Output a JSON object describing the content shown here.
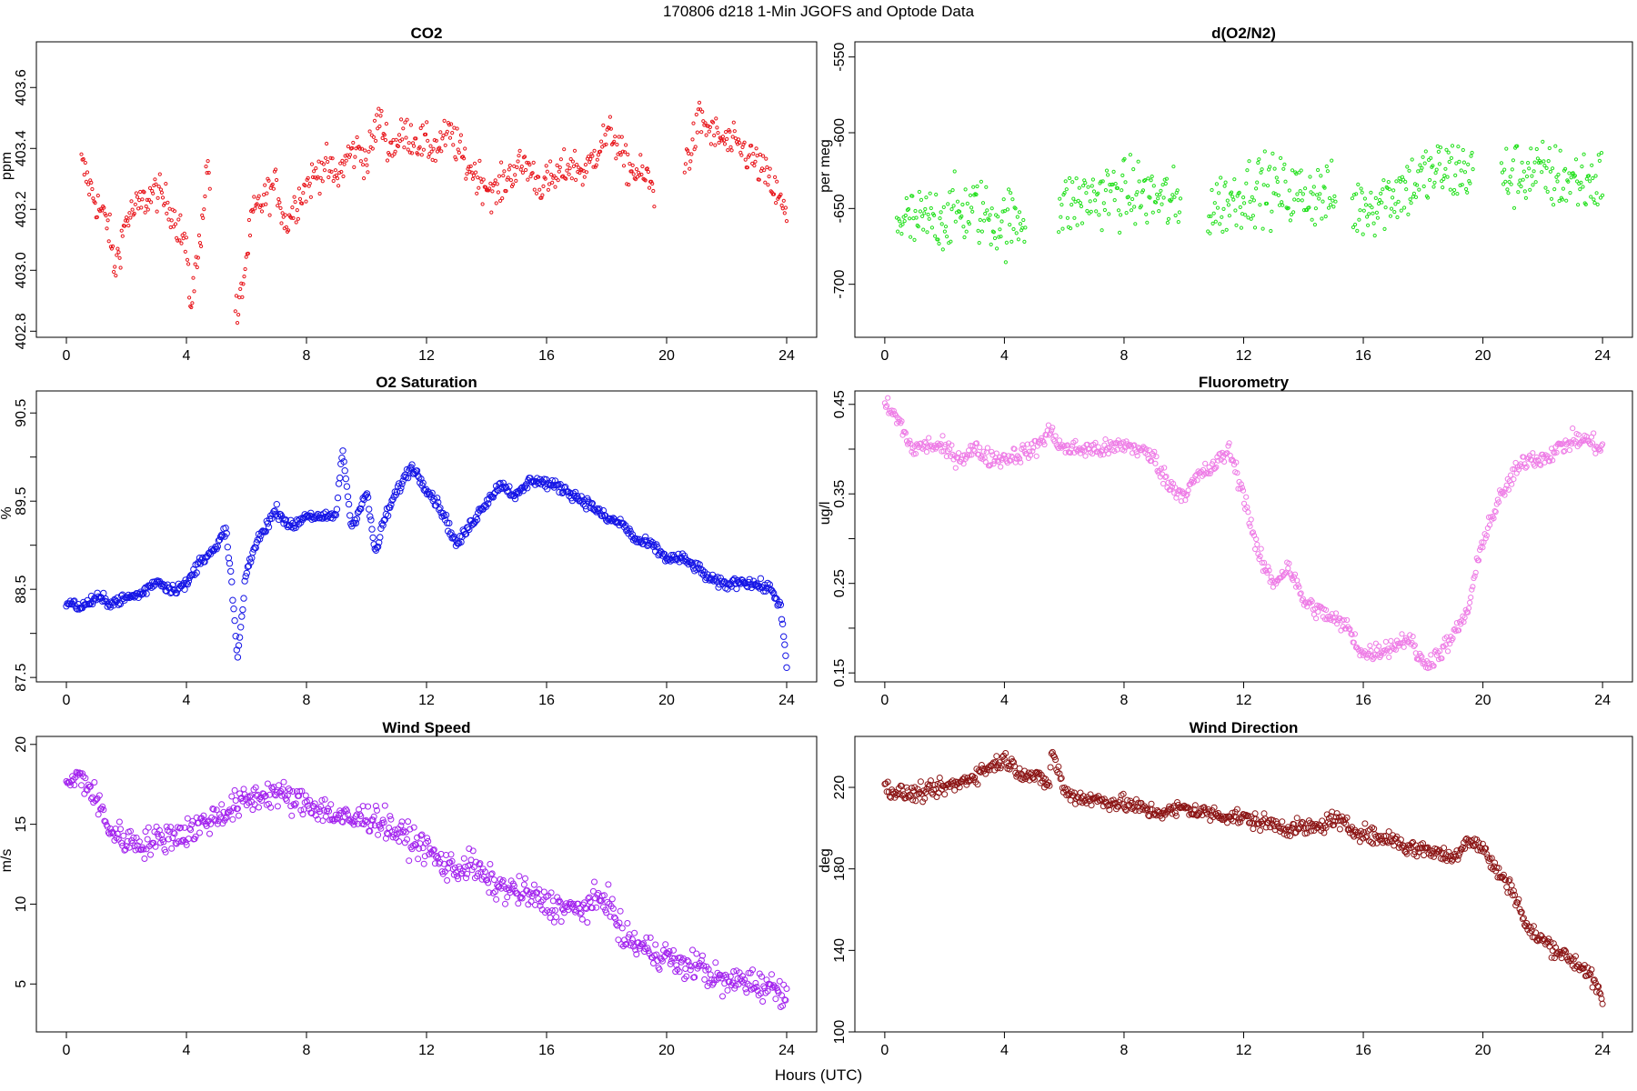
{
  "figure": {
    "title": "170806   d218   1-Min  JGOFS and Optode Data",
    "xlabel": "Hours (UTC)"
  },
  "chart_data": [
    {
      "type": "scatter",
      "title": "CO2",
      "ylabel": "ppm",
      "xlim": [
        -1,
        25
      ],
      "ylim": [
        402.78,
        403.75
      ],
      "xticks": [
        0,
        4,
        8,
        12,
        16,
        20,
        24
      ],
      "yticks": [
        402.8,
        403.0,
        403.2,
        403.4,
        403.6
      ],
      "ytick_labels": [
        "402.8",
        "403.0",
        "403.2",
        "403.4",
        "403.6"
      ],
      "marker_size": 1.6,
      "color": "#e8151b",
      "series": [
        {
          "x": [
            0.5,
            1,
            1.4,
            1.6,
            2,
            2.5,
            3,
            3.5,
            4,
            4.1,
            4.4,
            4.7,
            5.7,
            5.9,
            6.2,
            6.7,
            7,
            7.3,
            7.8,
            8.2,
            8.6,
            9,
            9.4,
            9.8,
            10,
            10.4,
            10.8,
            11.3,
            11.8,
            12.3,
            12.8,
            13.3,
            13.8,
            14.3,
            14.8,
            15.3,
            15.8,
            16.3,
            16.8,
            17.3,
            17.8,
            18.2,
            18.6,
            19,
            19.4,
            19.6,
            20.6,
            20.9,
            21.1,
            21.5,
            22,
            22.5,
            23,
            23.5,
            23.9,
            24
          ],
          "y": [
            403.35,
            403.22,
            403.15,
            403.0,
            403.17,
            403.22,
            403.26,
            403.2,
            403.08,
            402.88,
            403.05,
            403.35,
            402.84,
            402.97,
            403.18,
            403.25,
            403.28,
            403.15,
            403.25,
            403.3,
            403.35,
            403.3,
            403.38,
            403.4,
            403.35,
            403.5,
            403.4,
            403.45,
            403.42,
            403.4,
            403.45,
            403.35,
            403.3,
            403.25,
            403.32,
            403.35,
            403.28,
            403.3,
            403.35,
            403.32,
            403.42,
            403.45,
            403.35,
            403.32,
            403.3,
            403.25,
            403.35,
            403.42,
            403.5,
            403.45,
            403.42,
            403.4,
            403.35,
            403.28,
            403.2,
            403.16
          ],
          "spread": 0.06
        }
      ]
    },
    {
      "type": "scatter",
      "title": "d(O2/N2)",
      "ylabel": "per meg",
      "xlim": [
        -1,
        25
      ],
      "ylim": [
        -735,
        -540
      ],
      "xticks": [
        0,
        4,
        8,
        12,
        16,
        20,
        24
      ],
      "yticks": [
        -700,
        -650,
        -600,
        -550
      ],
      "ytick_labels": [
        "-700",
        "-650",
        "-600",
        "-550"
      ],
      "marker_size": 1.6,
      "color": "#22e01c",
      "series": [
        {
          "x": [
            0.4,
            1,
            2,
            3,
            4,
            4.7,
            5.8,
            6.5,
            7.5,
            8.5,
            9.5,
            9.9,
            10.8,
            11.5,
            12.5,
            13.5,
            14.5,
            15.2,
            15.6,
            16.5,
            17.5,
            18.5,
            19.2,
            19.8,
            20.6,
            21.5,
            22.5,
            23.5,
            24
          ],
          "y": [
            -655,
            -660,
            -655,
            -650,
            -660,
            -655,
            -650,
            -645,
            -640,
            -640,
            -645,
            -650,
            -650,
            -645,
            -635,
            -640,
            -640,
            -645,
            -650,
            -645,
            -635,
            -625,
            -625,
            -625,
            -630,
            -625,
            -630,
            -632,
            -632
          ],
          "spread": 22
        }
      ]
    },
    {
      "type": "scatter",
      "title": "O2 Saturation",
      "ylabel": "%",
      "xlim": [
        -1,
        25
      ],
      "ylim": [
        87.45,
        90.75
      ],
      "xticks": [
        0,
        4,
        8,
        12,
        16,
        20,
        24
      ],
      "yticks": [
        87.5,
        88.0,
        88.5,
        89.0,
        89.5,
        90.0,
        90.5
      ],
      "ytick_labels": [
        "87.5",
        "",
        "88.5",
        "",
        "89.5",
        "",
        "90.5"
      ],
      "marker_size": 3.2,
      "color": "#1515e6",
      "series": [
        {
          "x": [
            0,
            0.5,
            1,
            1.5,
            2,
            2.5,
            3,
            3.5,
            4,
            4.5,
            5,
            5.3,
            5.5,
            5.7,
            6,
            6.3,
            6.7,
            7,
            7.5,
            8,
            8.5,
            9,
            9.2,
            9.5,
            10,
            10.3,
            10.6,
            11,
            11.5,
            12,
            12.5,
            13,
            13.5,
            14,
            14.5,
            15,
            15.5,
            16,
            16.5,
            17,
            17.5,
            18,
            18.5,
            19,
            19.5,
            20,
            20.5,
            21,
            21.5,
            22,
            22.5,
            23,
            23.5,
            23.8,
            24
          ],
          "y": [
            88.35,
            88.3,
            88.4,
            88.35,
            88.4,
            88.45,
            88.6,
            88.5,
            88.55,
            88.85,
            88.95,
            89.2,
            88.6,
            87.7,
            88.7,
            89.0,
            89.25,
            89.4,
            89.2,
            89.35,
            89.3,
            89.35,
            90.1,
            89.2,
            89.6,
            88.9,
            89.3,
            89.6,
            89.9,
            89.65,
            89.4,
            89.0,
            89.25,
            89.5,
            89.7,
            89.55,
            89.75,
            89.7,
            89.65,
            89.55,
            89.45,
            89.3,
            89.25,
            89.05,
            89.0,
            88.85,
            88.85,
            88.75,
            88.6,
            88.55,
            88.6,
            88.55,
            88.5,
            88.3,
            87.6
          ],
          "spread": 0.06
        }
      ]
    },
    {
      "type": "scatter",
      "title": "Fluorometry",
      "ylabel": "ug/l",
      "xlim": [
        -1,
        25
      ],
      "ylim": [
        0.14,
        0.465
      ],
      "xticks": [
        0,
        4,
        8,
        12,
        16,
        20,
        24
      ],
      "yticks": [
        0.15,
        0.2,
        0.25,
        0.3,
        0.35,
        0.4,
        0.45
      ],
      "ytick_labels": [
        "0.15",
        "",
        "0.25",
        "",
        "0.35",
        "",
        "0.45"
      ],
      "marker_size": 2.6,
      "color": "#ee7ce6",
      "series": [
        {
          "x": [
            0,
            0.5,
            0.9,
            1.5,
            2,
            2.5,
            3,
            3.5,
            4,
            4.5,
            5,
            5.5,
            6,
            6.5,
            7,
            7.5,
            8,
            8.5,
            9,
            9.5,
            10,
            10.5,
            11,
            11.5,
            12,
            12.5,
            13,
            13.5,
            14,
            14.5,
            15,
            15.5,
            16,
            16.5,
            17,
            17.5,
            18,
            18.5,
            19,
            19.5,
            20,
            20.5,
            21,
            21.5,
            22,
            22.5,
            23,
            23.5,
            24
          ],
          "y": [
            0.45,
            0.43,
            0.4,
            0.405,
            0.4,
            0.39,
            0.4,
            0.39,
            0.39,
            0.395,
            0.4,
            0.42,
            0.4,
            0.4,
            0.4,
            0.4,
            0.405,
            0.4,
            0.39,
            0.36,
            0.35,
            0.37,
            0.38,
            0.4,
            0.35,
            0.28,
            0.25,
            0.27,
            0.23,
            0.22,
            0.21,
            0.2,
            0.17,
            0.175,
            0.18,
            0.19,
            0.16,
            0.17,
            0.19,
            0.22,
            0.3,
            0.34,
            0.37,
            0.39,
            0.39,
            0.4,
            0.41,
            0.41,
            0.4
          ],
          "spread": 0.01
        }
      ]
    },
    {
      "type": "scatter",
      "title": "Wind Speed",
      "ylabel": "m/s",
      "xlim": [
        -1,
        25
      ],
      "ylim": [
        2,
        20.5
      ],
      "xticks": [
        0,
        4,
        8,
        12,
        16,
        20,
        24
      ],
      "yticks": [
        5,
        10,
        15,
        20
      ],
      "ytick_labels": [
        "5",
        "10",
        "15",
        "20"
      ],
      "marker_size": 3.0,
      "color": "#a222ee",
      "series": [
        {
          "x": [
            0,
            0.5,
            1,
            1.5,
            2,
            2.5,
            3,
            3.5,
            4,
            4.5,
            5,
            5.5,
            6,
            6.5,
            7,
            7.5,
            8,
            8.5,
            9,
            9.5,
            10,
            10.5,
            11,
            11.5,
            12,
            12.5,
            13,
            13.5,
            14,
            14.5,
            15,
            15.5,
            16,
            16.5,
            17,
            17.5,
            18,
            18.5,
            19,
            19.5,
            20,
            20.5,
            21,
            21.5,
            22,
            22.5,
            23,
            23.5,
            24
          ],
          "y": [
            17.5,
            18,
            16.5,
            14.5,
            14,
            13.8,
            14,
            14.3,
            14.5,
            15,
            15.5,
            16,
            16.5,
            16.8,
            17,
            16.5,
            16.3,
            16,
            15.5,
            15.2,
            15.5,
            15.2,
            14.5,
            14,
            13.5,
            12.5,
            12.2,
            12.5,
            11.5,
            11,
            10.8,
            10.5,
            10,
            9.8,
            9.6,
            10,
            10.5,
            8,
            7.5,
            7,
            6.8,
            6,
            6.3,
            5.5,
            5,
            5.3,
            5,
            4.8,
            4.5
          ],
          "spread": 0.9
        }
      ]
    },
    {
      "type": "scatter",
      "title": "Wind Direction",
      "ylabel": "deg",
      "xlim": [
        -1,
        25
      ],
      "ylim": [
        100,
        245
      ],
      "xticks": [
        0,
        4,
        8,
        12,
        16,
        20,
        24
      ],
      "yticks": [
        100,
        140,
        180,
        220
      ],
      "ytick_labels": [
        "100",
        "140",
        "180",
        "220"
      ],
      "marker_size": 3.0,
      "color": "#8b1414",
      "series": [
        {
          "x": [
            0,
            0.5,
            1,
            1.5,
            2,
            2.5,
            3,
            3.5,
            4,
            4.5,
            5,
            5.5,
            5.6,
            6,
            6.5,
            7,
            7.5,
            8,
            8.5,
            9,
            9.5,
            10,
            10.5,
            11,
            11.5,
            12,
            12.5,
            13,
            13.5,
            14,
            14.5,
            15,
            15.5,
            16,
            16.5,
            17,
            17.5,
            18,
            18.5,
            19,
            19.5,
            20,
            20.5,
            21,
            21.5,
            22,
            22.5,
            23,
            23.5,
            24
          ],
          "y": [
            220,
            217,
            217,
            218,
            220,
            222,
            226,
            230,
            234,
            228,
            225,
            222,
            238,
            218,
            215,
            214,
            213,
            212,
            210,
            208,
            208,
            210,
            208,
            207,
            206,
            205,
            203,
            202,
            200,
            200,
            200,
            205,
            200,
            198,
            195,
            195,
            190,
            190,
            188,
            185,
            195,
            190,
            178,
            170,
            150,
            145,
            140,
            135,
            130,
            115
          ],
          "spread": 4
        }
      ]
    }
  ]
}
